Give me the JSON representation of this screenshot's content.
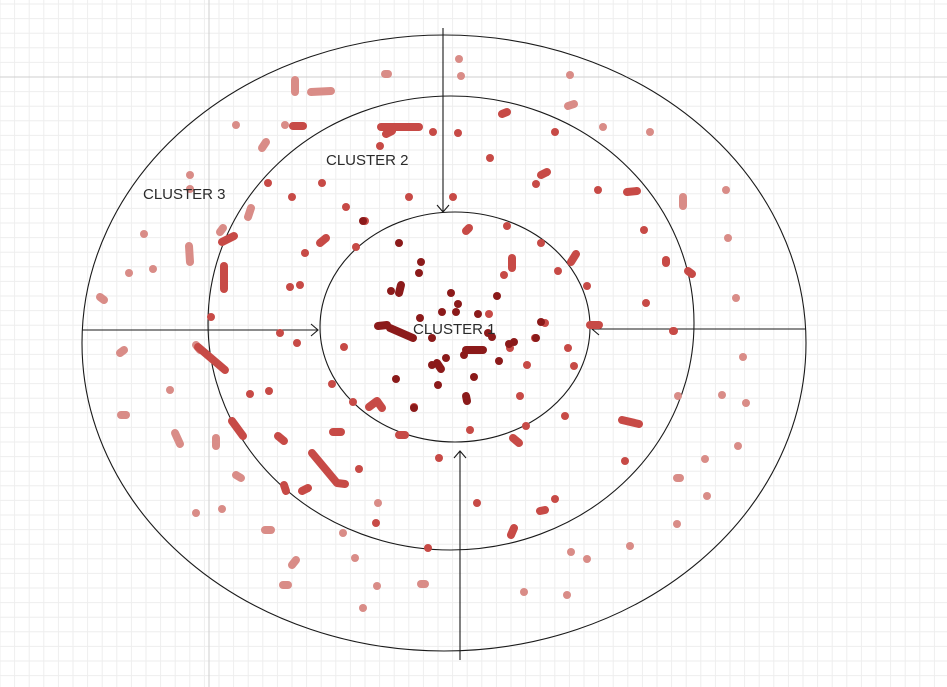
{
  "labels": {
    "cluster1": "CLUSTER 1",
    "cluster2": "CLUSTER 2",
    "cluster3": "CLUSTER 3"
  },
  "colors": {
    "background": "#ffffff",
    "grid_minor": "#ececec",
    "grid_major": "#d2d2d2",
    "outline": "#1a1a1a",
    "cluster1_points": "#8b1a1a",
    "cluster2_points": "#c74a46",
    "cluster3_points": "#d98c87"
  }
}
